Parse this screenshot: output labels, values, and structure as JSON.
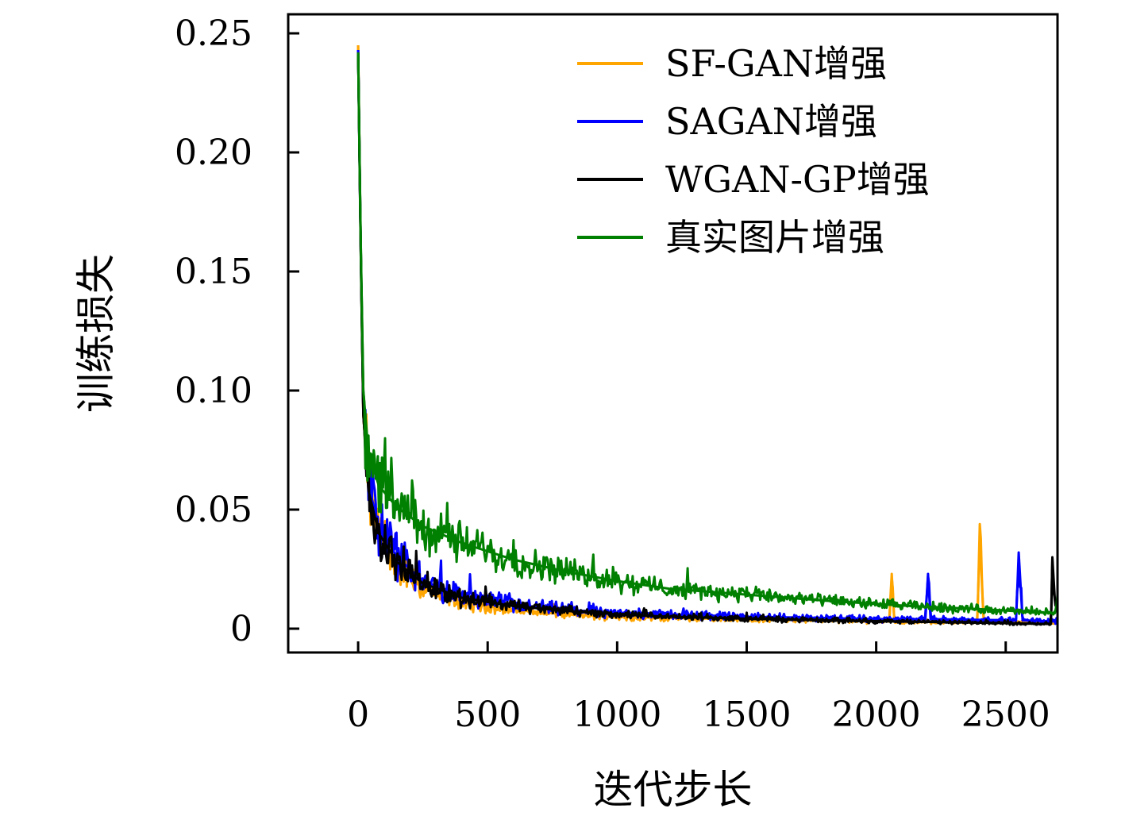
{
  "chart_data": {
    "type": "line",
    "title": "",
    "xlabel": "迭代步长",
    "ylabel": "训练损失",
    "xlim": [
      -270,
      2700
    ],
    "ylim": [
      -0.01,
      0.258
    ],
    "xticks": [
      0,
      500,
      1000,
      1500,
      2000,
      2500
    ],
    "xtick_labels": [
      "0",
      "500",
      "1000",
      "1500",
      "2000",
      "2500"
    ],
    "yticks": [
      0,
      0.05,
      0.1,
      0.15,
      0.2,
      0.25
    ],
    "ytick_labels": [
      "0",
      "0.05",
      "0.10",
      "0.15",
      "0.20",
      "0.25"
    ],
    "grid": false,
    "legend_position": "top-right",
    "series": [
      {
        "name": "SF-GAN增强",
        "color": "#FFA500",
        "points": [
          [
            0,
            0.245
          ],
          [
            10,
            0.16
          ],
          [
            20,
            0.09
          ],
          [
            40,
            0.058
          ],
          [
            80,
            0.04
          ],
          [
            150,
            0.026
          ],
          [
            250,
            0.017
          ],
          [
            400,
            0.011
          ],
          [
            600,
            0.008
          ],
          [
            800,
            0.006
          ],
          [
            1000,
            0.005
          ],
          [
            1200,
            0.0045
          ],
          [
            1500,
            0.004
          ],
          [
            1800,
            0.0035
          ],
          [
            2050,
            0.003
          ],
          [
            2060,
            0.023
          ],
          [
            2070,
            0.003
          ],
          [
            2390,
            0.0028
          ],
          [
            2400,
            0.038
          ],
          [
            2415,
            0.003
          ],
          [
            2700,
            0.0025
          ]
        ]
      },
      {
        "name": "SAGAN增强",
        "color": "#0000FF",
        "points": [
          [
            0,
            0.243
          ],
          [
            10,
            0.16
          ],
          [
            20,
            0.092
          ],
          [
            40,
            0.06
          ],
          [
            80,
            0.043
          ],
          [
            150,
            0.03
          ],
          [
            250,
            0.02
          ],
          [
            400,
            0.014
          ],
          [
            600,
            0.01
          ],
          [
            800,
            0.008
          ],
          [
            1000,
            0.0065
          ],
          [
            1200,
            0.006
          ],
          [
            1500,
            0.005
          ],
          [
            1800,
            0.0045
          ],
          [
            2000,
            0.004
          ],
          [
            2190,
            0.004
          ],
          [
            2200,
            0.023
          ],
          [
            2210,
            0.004
          ],
          [
            2540,
            0.0035
          ],
          [
            2550,
            0.032
          ],
          [
            2565,
            0.0035
          ],
          [
            2700,
            0.003
          ]
        ]
      },
      {
        "name": "WGAN-GP增强",
        "color": "#000000",
        "points": [
          [
            0,
            0.242
          ],
          [
            10,
            0.158
          ],
          [
            20,
            0.09
          ],
          [
            40,
            0.058
          ],
          [
            80,
            0.04
          ],
          [
            150,
            0.028
          ],
          [
            250,
            0.019
          ],
          [
            400,
            0.013
          ],
          [
            600,
            0.0095
          ],
          [
            800,
            0.0075
          ],
          [
            1000,
            0.006
          ],
          [
            1200,
            0.005
          ],
          [
            1500,
            0.0042
          ],
          [
            1800,
            0.0035
          ],
          [
            2100,
            0.003
          ],
          [
            2400,
            0.0025
          ],
          [
            2650,
            0.002
          ],
          [
            2675,
            0.002
          ],
          [
            2680,
            0.03
          ],
          [
            2690,
            0.012
          ],
          [
            2700,
            0.009
          ]
        ]
      },
      {
        "name": "真实图片增强",
        "color": "#008000",
        "points": [
          [
            0,
            0.242
          ],
          [
            10,
            0.162
          ],
          [
            20,
            0.1
          ],
          [
            40,
            0.074
          ],
          [
            80,
            0.06
          ],
          [
            150,
            0.051
          ],
          [
            250,
            0.043
          ],
          [
            400,
            0.036
          ],
          [
            600,
            0.029
          ],
          [
            800,
            0.024
          ],
          [
            1000,
            0.02
          ],
          [
            1200,
            0.0168
          ],
          [
            1500,
            0.0143
          ],
          [
            1800,
            0.0118
          ],
          [
            2100,
            0.0097
          ],
          [
            2400,
            0.0082
          ],
          [
            2600,
            0.007
          ],
          [
            2690,
            0.0065
          ],
          [
            2700,
            0.012
          ]
        ]
      }
    ]
  }
}
